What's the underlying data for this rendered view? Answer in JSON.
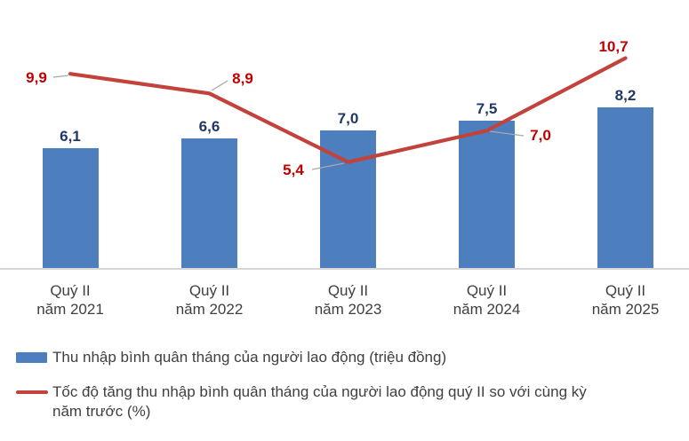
{
  "chart_data": {
    "type": "combo",
    "categories": [
      "Quý II\nnăm 2021",
      "Quý II\nnăm 2022",
      "Quý II\nnăm 2023",
      "Quý II\nnăm 2024",
      "Quý II\nnăm 2025"
    ],
    "series": [
      {
        "type": "bar",
        "name": "Thu nhập bình quân tháng của người lao động (triệu đồng)",
        "values": [
          6.1,
          6.6,
          7.0,
          7.5,
          8.2
        ],
        "labels": [
          "6,1",
          "6,6",
          "7,0",
          "7,5",
          "8,2"
        ],
        "color": "#4d7ebd",
        "label_color": "#1f3864"
      },
      {
        "type": "line",
        "name": "Tốc độ tăng thu nhập bình quân tháng của người lao động quý II so với cùng kỳ\nnăm trước (%)",
        "values": [
          9.9,
          8.9,
          5.4,
          7.0,
          10.7
        ],
        "labels": [
          "9,9",
          "8,9",
          "5,4",
          "7,0",
          "10,7"
        ],
        "color": "#c2423c",
        "label_color": "#c00000"
      }
    ],
    "ylim": [
      0,
      12
    ],
    "y_axis_visible": false,
    "x_axis_line_color": "#d6d6d6",
    "gridlines": false,
    "legend_position": "bottom-left",
    "leader_line_color": "#a8a8a8"
  }
}
